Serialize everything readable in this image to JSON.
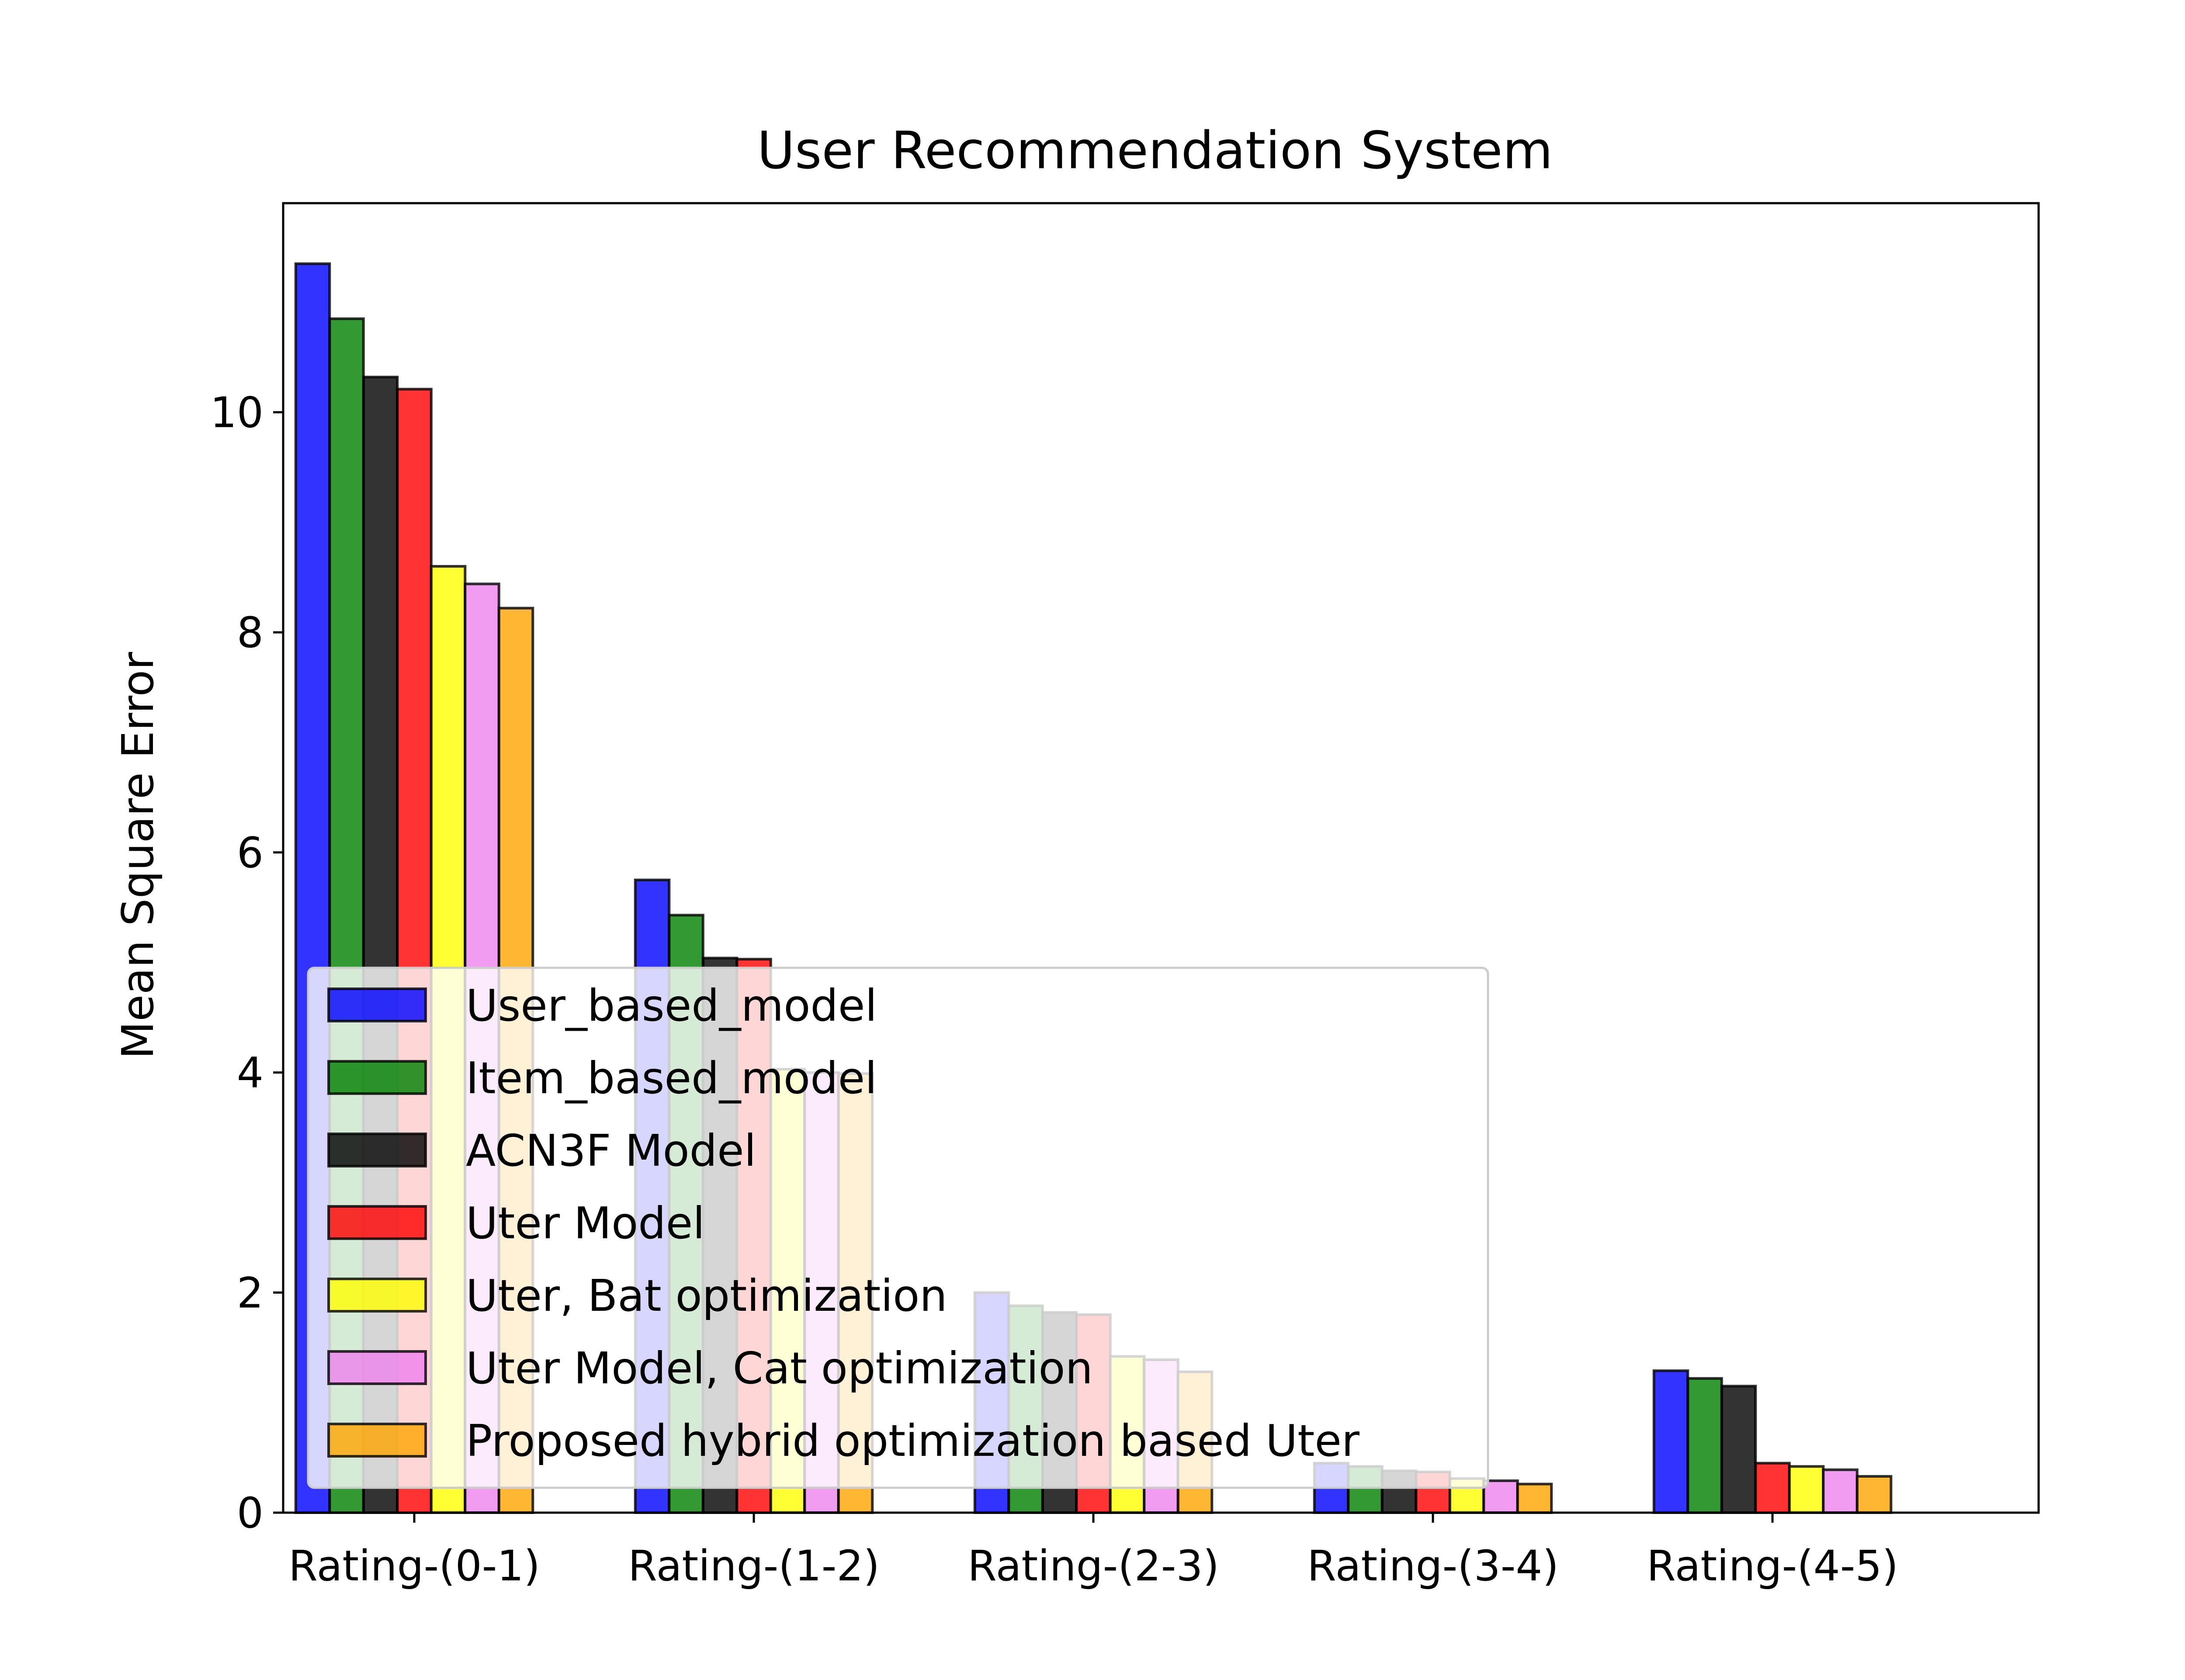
{
  "chart_data": {
    "type": "bar",
    "title": "User Recommendation System",
    "xlabel": "",
    "ylabel": "Mean Square Error",
    "categories": [
      "Rating-(0-1)",
      "Rating-(1-2)",
      "Rating-(2-3)",
      "Rating-(3-4)",
      "Rating-(4-5)"
    ],
    "ylim": [
      0,
      11.9
    ],
    "yticks": [
      0,
      2,
      4,
      6,
      8,
      10
    ],
    "legend_position": "lower-left",
    "grid": false,
    "series": [
      {
        "name": "User_based_model",
        "color": "#0000ff",
        "values": [
          11.35,
          5.75,
          2.0,
          0.45,
          1.29
        ]
      },
      {
        "name": "Item_based_model",
        "color": "#008000",
        "values": [
          10.85,
          5.43,
          1.88,
          0.42,
          1.22
        ]
      },
      {
        "name": "ACN3F Model",
        "color": "#000000",
        "values": [
          10.32,
          5.04,
          1.82,
          0.38,
          1.15
        ]
      },
      {
        "name": "Uter Model",
        "color": "#ff0000",
        "values": [
          10.21,
          5.03,
          1.8,
          0.37,
          0.45
        ]
      },
      {
        "name": "Uter, Bat optimization",
        "color": "#ffff00",
        "values": [
          8.6,
          4.03,
          1.42,
          0.31,
          0.42
        ]
      },
      {
        "name": "Uter Model, Cat optimization",
        "color": "#ee82ee",
        "values": [
          8.44,
          4.0,
          1.39,
          0.29,
          0.39
        ]
      },
      {
        "name": "Proposed hybrid optimization based Uter",
        "color": "#ffa500",
        "values": [
          8.22,
          3.99,
          1.28,
          0.26,
          0.33
        ]
      }
    ]
  }
}
